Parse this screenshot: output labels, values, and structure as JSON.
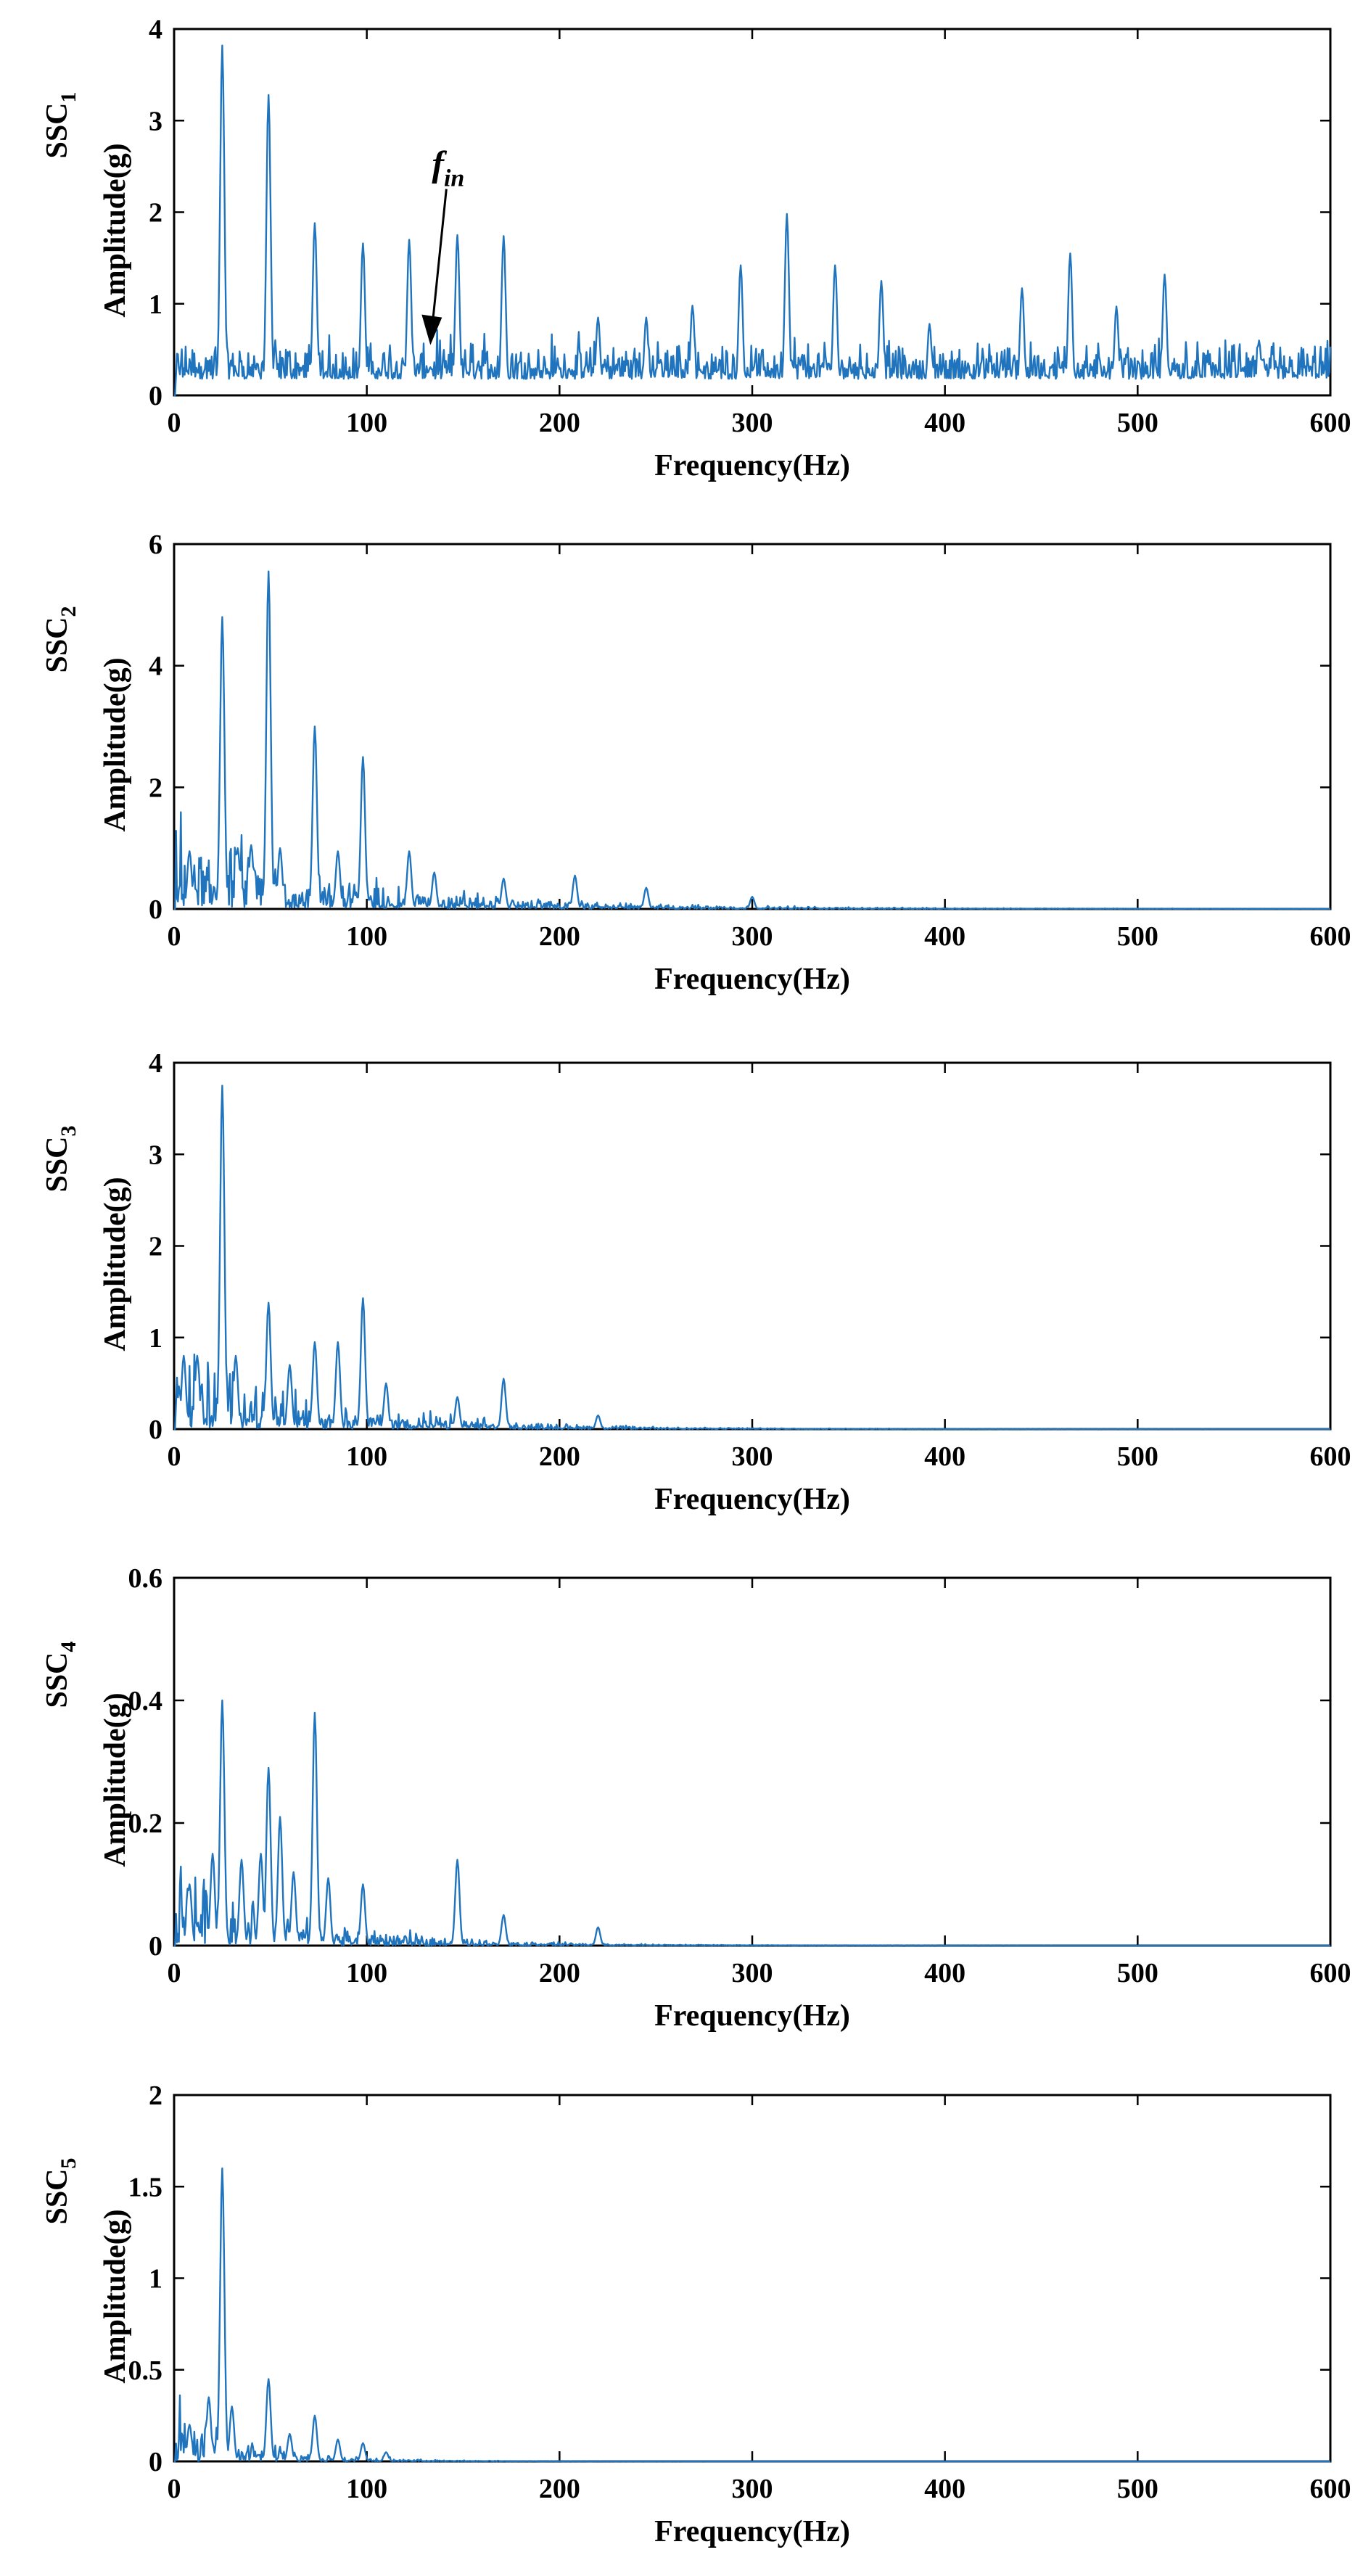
{
  "figure": {
    "line_color": "#1f74bd"
  },
  "annotation": {
    "symbol": "f",
    "subscript": "in",
    "points_to_x": 133,
    "points_to_y": 0.55
  },
  "chart_data": [
    {
      "type": "line",
      "panel": "ssc-1",
      "ssc_label": "SSC",
      "ssc_sub": "1",
      "ylabel": "Amplitude(g)",
      "xlabel": "Frequency(Hz)",
      "xlim": [
        0,
        600
      ],
      "ylim": [
        0,
        4
      ],
      "xticks": [
        "0",
        "100",
        "200",
        "300",
        "400",
        "500",
        "600"
      ],
      "yticks": [
        "0",
        "1",
        "2",
        "3",
        "4"
      ],
      "noise_base": 0.18,
      "noise_amp": 0.22,
      "noise_decay": 0,
      "peaks": [
        [
          25,
          3.82
        ],
        [
          49,
          3.28
        ],
        [
          73,
          1.88
        ],
        [
          98,
          1.66
        ],
        [
          122,
          1.7
        ],
        [
          147,
          1.75
        ],
        [
          171,
          1.74
        ],
        [
          220,
          0.85
        ],
        [
          245,
          0.85
        ],
        [
          269,
          0.98
        ],
        [
          294,
          1.42
        ],
        [
          318,
          1.98
        ],
        [
          343,
          1.42
        ],
        [
          367,
          1.25
        ],
        [
          392,
          0.78
        ],
        [
          440,
          1.17
        ],
        [
          465,
          1.55
        ],
        [
          489,
          0.97
        ],
        [
          514,
          1.32
        ],
        [
          563,
          0.6
        ]
      ]
    },
    {
      "type": "line",
      "panel": "ssc-2",
      "ssc_label": "SSC",
      "ssc_sub": "2",
      "ylabel": "Amplitude(g)",
      "xlabel": "Frequency(Hz)",
      "xlim": [
        0,
        600
      ],
      "ylim": [
        0,
        6
      ],
      "xticks": [
        "0",
        "100",
        "200",
        "300",
        "400",
        "500",
        "600"
      ],
      "yticks": [
        "0",
        "2",
        "4",
        "6"
      ],
      "noise_base": 0.05,
      "noise_amp": 0.75,
      "noise_decay": 90,
      "peaks": [
        [
          8,
          0.95
        ],
        [
          25,
          4.8
        ],
        [
          33,
          1.0
        ],
        [
          40,
          1.05
        ],
        [
          49,
          5.55
        ],
        [
          55,
          1.0
        ],
        [
          73,
          3.0
        ],
        [
          85,
          0.95
        ],
        [
          98,
          2.5
        ],
        [
          122,
          0.95
        ],
        [
          135,
          0.6
        ],
        [
          171,
          0.5
        ],
        [
          208,
          0.55
        ],
        [
          245,
          0.35
        ],
        [
          300,
          0.2
        ]
      ]
    },
    {
      "type": "line",
      "panel": "ssc-3",
      "ssc_label": "SSC",
      "ssc_sub": "3",
      "ylabel": "Amplitude(g)",
      "xlabel": "Frequency(Hz)",
      "xlim": [
        0,
        600
      ],
      "ylim": [
        0,
        4
      ],
      "xticks": [
        "0",
        "100",
        "200",
        "300",
        "400",
        "500",
        "600"
      ],
      "yticks": [
        "0",
        "1",
        "2",
        "3",
        "4"
      ],
      "noise_base": 0.02,
      "noise_amp": 0.55,
      "noise_decay": 70,
      "peaks": [
        [
          5,
          0.8
        ],
        [
          12,
          0.8
        ],
        [
          25,
          3.75
        ],
        [
          32,
          0.8
        ],
        [
          49,
          1.38
        ],
        [
          60,
          0.7
        ],
        [
          73,
          0.95
        ],
        [
          85,
          0.95
        ],
        [
          98,
          1.43
        ],
        [
          110,
          0.5
        ],
        [
          147,
          0.35
        ],
        [
          171,
          0.55
        ],
        [
          220,
          0.15
        ]
      ]
    },
    {
      "type": "line",
      "panel": "ssc-4",
      "ssc_label": "SSC",
      "ssc_sub": "4",
      "ylabel": "Amplitude(g)",
      "xlabel": "Frequency(Hz)",
      "xlim": [
        0,
        600
      ],
      "ylim": [
        0,
        0.6
      ],
      "xticks": [
        "0",
        "100",
        "200",
        "300",
        "400",
        "500",
        "600"
      ],
      "yticks": [
        "0",
        "0.2",
        "0.4",
        "0.6"
      ],
      "noise_base": 0.003,
      "noise_amp": 0.08,
      "noise_decay": 60,
      "peaks": [
        [
          8,
          0.1
        ],
        [
          20,
          0.15
        ],
        [
          25,
          0.4
        ],
        [
          35,
          0.14
        ],
        [
          45,
          0.15
        ],
        [
          49,
          0.29
        ],
        [
          55,
          0.21
        ],
        [
          62,
          0.12
        ],
        [
          73,
          0.38
        ],
        [
          80,
          0.11
        ],
        [
          98,
          0.1
        ],
        [
          147,
          0.14
        ],
        [
          171,
          0.05
        ],
        [
          220,
          0.03
        ]
      ]
    },
    {
      "type": "line",
      "panel": "ssc-5",
      "ssc_label": "SSC",
      "ssc_sub": "5",
      "ylabel": "Amplitude(g)",
      "xlabel": "Frequency(Hz)",
      "xlim": [
        0,
        600
      ],
      "ylim": [
        0,
        2
      ],
      "xticks": [
        "0",
        "100",
        "200",
        "300",
        "400",
        "500",
        "600"
      ],
      "yticks": [
        "0",
        "0.5",
        "1",
        "1.5",
        "2"
      ],
      "noise_base": 0.003,
      "noise_amp": 0.22,
      "noise_decay": 35,
      "peaks": [
        [
          8,
          0.2
        ],
        [
          18,
          0.35
        ],
        [
          25,
          1.6
        ],
        [
          30,
          0.3
        ],
        [
          49,
          0.45
        ],
        [
          60,
          0.15
        ],
        [
          73,
          0.25
        ],
        [
          85,
          0.12
        ],
        [
          98,
          0.1
        ],
        [
          110,
          0.05
        ]
      ]
    }
  ]
}
